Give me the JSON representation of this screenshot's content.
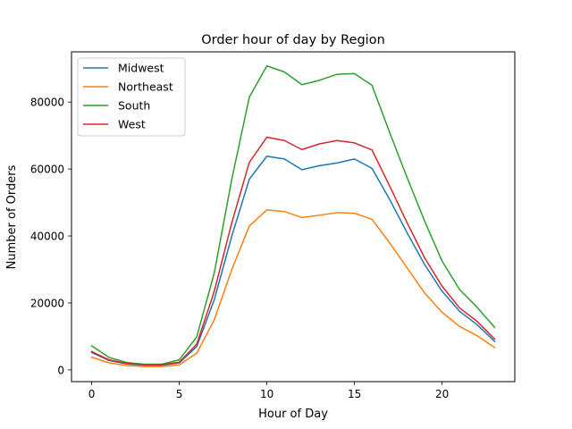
{
  "chart_data": {
    "type": "line",
    "title": "Order hour of day by Region",
    "xlabel": "Hour of Day",
    "ylabel": "Number of Orders",
    "xlim": [
      -1.15,
      24.15
    ],
    "ylim": [
      -3500,
      95000
    ],
    "xticks": [
      0,
      5,
      10,
      15,
      20
    ],
    "yticks": [
      0,
      20000,
      40000,
      60000,
      80000
    ],
    "grid": false,
    "legend_position": "top-left",
    "x": [
      0,
      1,
      2,
      3,
      4,
      5,
      6,
      7,
      8,
      9,
      10,
      11,
      12,
      13,
      14,
      15,
      16,
      17,
      18,
      19,
      20,
      21,
      22,
      23
    ],
    "series": [
      {
        "name": "Midwest",
        "color": "#1f77b4",
        "values": [
          5200,
          2800,
          1800,
          1400,
          1400,
          2100,
          7000,
          21000,
          40000,
          57000,
          63800,
          63000,
          59800,
          61000,
          61800,
          63000,
          60200,
          51000,
          41000,
          31500,
          23500,
          17500,
          13500,
          8500
        ]
      },
      {
        "name": "Northeast",
        "color": "#ff7f0e",
        "values": [
          3800,
          2100,
          1300,
          1000,
          1000,
          1500,
          5000,
          15000,
          30000,
          43000,
          47800,
          47300,
          45500,
          46200,
          47000,
          46800,
          45000,
          38000,
          30500,
          23000,
          17200,
          13000,
          10200,
          6700
        ]
      },
      {
        "name": "South",
        "color": "#2ca02c",
        "values": [
          7200,
          3700,
          2200,
          1700,
          1700,
          3000,
          9900,
          29000,
          57000,
          81500,
          90800,
          89000,
          85200,
          86500,
          88300,
          88500,
          85000,
          71000,
          57500,
          44500,
          32500,
          24000,
          18700,
          12700
        ]
      },
      {
        "name": "West",
        "color": "#d62728",
        "values": [
          5500,
          3000,
          1900,
          1500,
          1500,
          2300,
          7700,
          23500,
          44000,
          62000,
          69500,
          68500,
          65800,
          67500,
          68500,
          67800,
          65700,
          55000,
          44000,
          33500,
          25000,
          18500,
          14500,
          9200
        ]
      }
    ]
  }
}
